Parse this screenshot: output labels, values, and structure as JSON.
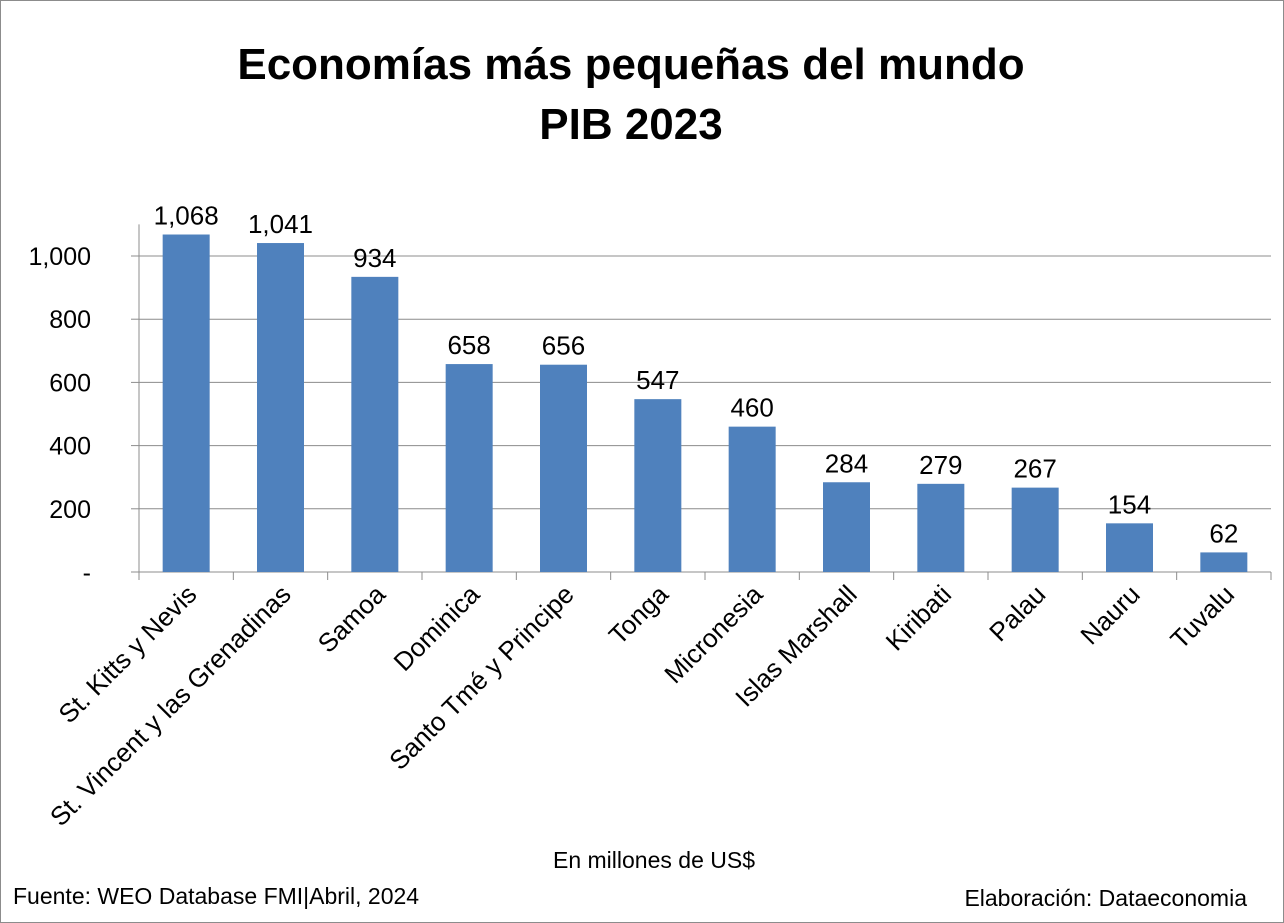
{
  "chart_data": {
    "type": "bar",
    "title_line1": "Economías más pequeñas del mundo",
    "title_line2": "PIB 2023",
    "xlabel": "En millones de US$",
    "ylabel": "",
    "ylim": [
      0,
      1100
    ],
    "yticks": [
      0,
      200,
      400,
      600,
      800,
      1000
    ],
    "ytick_labels": [
      "-",
      "200",
      "400",
      "600",
      "800",
      "1,000"
    ],
    "grid": true,
    "legend": "none",
    "bar_color": "#4F81BD",
    "categories": [
      "St. Kitts y Nevis",
      "St. Vincent y las Grenadinas",
      "Samoa",
      "Dominica",
      "Santo Tmé y Principe",
      "Tonga",
      "Micronesia",
      "Islas Marshall",
      "Kiribati",
      "Palau",
      "Nauru",
      "Tuvalu"
    ],
    "values": [
      1068,
      1041,
      934,
      658,
      656,
      547,
      460,
      284,
      279,
      267,
      154,
      62
    ],
    "value_labels": [
      "1,068",
      "1,041",
      "934",
      "658",
      "656",
      "547",
      "460",
      "284",
      "279",
      "267",
      "154",
      "62"
    ]
  },
  "footer": {
    "source": "Fuente: WEO Database FMI|Abril, 2024",
    "credit": "Elaboración: Dataeconomia"
  }
}
